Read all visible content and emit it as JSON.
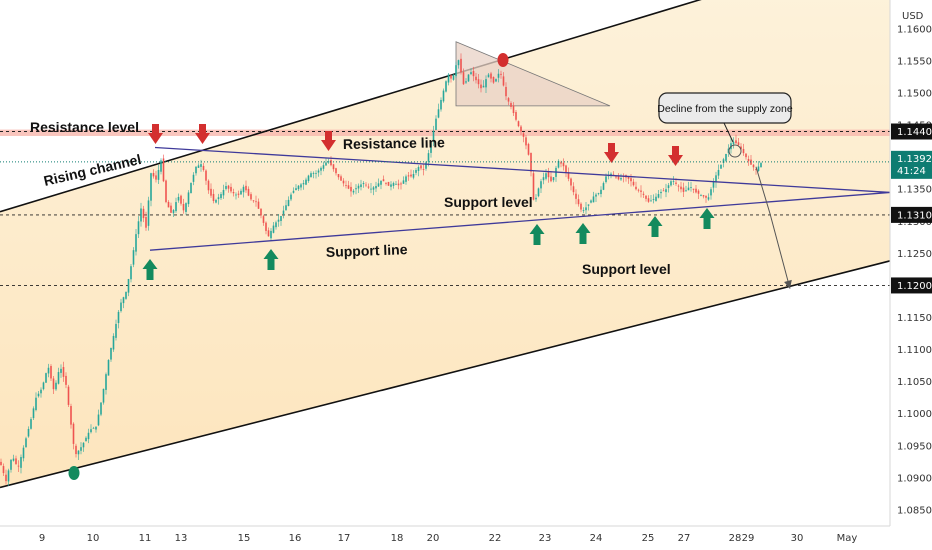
{
  "currency": "USD",
  "colors": {
    "up": "#26a69a",
    "down": "#ef5350",
    "channel_fill": "#fdf0d8",
    "resistance_zone": "#f7b7ac",
    "trendline": "#3f3a9a",
    "arrow_down": "#d32f2f",
    "arrow_up": "#138a5e",
    "current_price_bg": "#0e7c72"
  },
  "chart_data": {
    "type": "candlestick",
    "x_ticks": [
      "9",
      "10",
      "11",
      "13",
      "15",
      "16",
      "17",
      "18",
      "20",
      "22",
      "23",
      "24",
      "25",
      "27",
      "28",
      "29",
      "30",
      "May"
    ],
    "ylim": [
      1.0825,
      1.1645
    ],
    "y_ticks": [
      "1.16000",
      "1.15500",
      "1.15000",
      "1.14500",
      "1.14000",
      "1.13500",
      "1.13000",
      "1.12500",
      "1.12000",
      "1.11500",
      "1.11000",
      "1.10500",
      "1.10000",
      "1.09500",
      "1.09000",
      "1.08500"
    ],
    "price_labels": [
      {
        "label": "1.14400",
        "value": 1.144
      },
      {
        "label": "1.13100",
        "value": 1.131
      },
      {
        "label": "1.12000",
        "value": 1.12
      }
    ],
    "current_price": {
      "price": "1.13927",
      "countdown": "41:24",
      "value": 1.13927
    },
    "key_levels": {
      "resistance": 1.144,
      "support": 1.131,
      "lower_support": 1.12
    },
    "path_points": [
      [
        0,
        1.0925
      ],
      [
        6,
        1.0895
      ],
      [
        12,
        1.0935
      ],
      [
        18,
        1.0915
      ],
      [
        24,
        1.095
      ],
      [
        30,
        1.0985
      ],
      [
        36,
        1.1025
      ],
      [
        42,
        1.104
      ],
      [
        48,
        1.1075
      ],
      [
        54,
        1.1035
      ],
      [
        60,
        1.1075
      ],
      [
        66,
        1.1045
      ],
      [
        70,
        1.0995
      ],
      [
        75,
        1.0935
      ],
      [
        82,
        1.095
      ],
      [
        90,
        1.0975
      ],
      [
        96,
        1.098
      ],
      [
        102,
        1.1025
      ],
      [
        108,
        1.108
      ],
      [
        114,
        1.1125
      ],
      [
        120,
        1.117
      ],
      [
        126,
        1.119
      ],
      [
        131,
        1.123
      ],
      [
        136,
        1.128
      ],
      [
        141,
        1.132
      ],
      [
        146,
        1.129
      ],
      [
        151,
        1.1375
      ],
      [
        156,
        1.1365
      ],
      [
        161,
        1.1395
      ],
      [
        166,
        1.133
      ],
      [
        172,
        1.131
      ],
      [
        178,
        1.134
      ],
      [
        184,
        1.1315
      ],
      [
        190,
        1.1355
      ],
      [
        196,
        1.1385
      ],
      [
        202,
        1.139
      ],
      [
        208,
        1.135
      ],
      [
        214,
        1.133
      ],
      [
        220,
        1.134
      ],
      [
        226,
        1.1355
      ],
      [
        232,
        1.1345
      ],
      [
        238,
        1.134
      ],
      [
        244,
        1.1355
      ],
      [
        250,
        1.1335
      ],
      [
        256,
        1.133
      ],
      [
        262,
        1.1305
      ],
      [
        268,
        1.1275
      ],
      [
        274,
        1.1295
      ],
      [
        280,
        1.1305
      ],
      [
        286,
        1.1325
      ],
      [
        292,
        1.1345
      ],
      [
        298,
        1.1355
      ],
      [
        304,
        1.136
      ],
      [
        310,
        1.1375
      ],
      [
        316,
        1.1375
      ],
      [
        322,
        1.1385
      ],
      [
        328,
        1.1395
      ],
      [
        334,
        1.138
      ],
      [
        340,
        1.1365
      ],
      [
        346,
        1.1355
      ],
      [
        352,
        1.1345
      ],
      [
        358,
        1.1355
      ],
      [
        364,
        1.136
      ],
      [
        370,
        1.135
      ],
      [
        376,
        1.1355
      ],
      [
        382,
        1.1365
      ],
      [
        388,
        1.1355
      ],
      [
        394,
        1.136
      ],
      [
        400,
        1.1355
      ],
      [
        406,
        1.137
      ],
      [
        412,
        1.137
      ],
      [
        418,
        1.1385
      ],
      [
        424,
        1.138
      ],
      [
        430,
        1.1415
      ],
      [
        436,
        1.146
      ],
      [
        442,
        1.1495
      ],
      [
        448,
        1.153
      ],
      [
        452,
        1.152
      ],
      [
        458,
        1.1555
      ],
      [
        464,
        1.151
      ],
      [
        470,
        1.1535
      ],
      [
        476,
        1.152
      ],
      [
        482,
        1.1505
      ],
      [
        488,
        1.153
      ],
      [
        494,
        1.1515
      ],
      [
        500,
        1.1535
      ],
      [
        506,
        1.1495
      ],
      [
        512,
        1.1475
      ],
      [
        518,
        1.145
      ],
      [
        524,
        1.143
      ],
      [
        530,
        1.1395
      ],
      [
        534,
        1.1325
      ],
      [
        540,
        1.136
      ],
      [
        546,
        1.1375
      ],
      [
        552,
        1.136
      ],
      [
        558,
        1.1395
      ],
      [
        564,
        1.1385
      ],
      [
        570,
        1.136
      ],
      [
        576,
        1.1335
      ],
      [
        582,
        1.1315
      ],
      [
        588,
        1.1325
      ],
      [
        594,
        1.134
      ],
      [
        600,
        1.1345
      ],
      [
        606,
        1.137
      ],
      [
        612,
        1.1375
      ],
      [
        618,
        1.1365
      ],
      [
        624,
        1.137
      ],
      [
        630,
        1.1365
      ],
      [
        636,
        1.135
      ],
      [
        642,
        1.1345
      ],
      [
        648,
        1.133
      ],
      [
        654,
        1.1335
      ],
      [
        660,
        1.1345
      ],
      [
        666,
        1.135
      ],
      [
        672,
        1.1365
      ],
      [
        678,
        1.1355
      ],
      [
        684,
        1.1345
      ],
      [
        690,
        1.1355
      ],
      [
        696,
        1.1345
      ],
      [
        702,
        1.134
      ],
      [
        708,
        1.1335
      ],
      [
        714,
        1.1365
      ],
      [
        720,
        1.1385
      ],
      [
        726,
        1.1405
      ],
      [
        732,
        1.1425
      ],
      [
        738,
        1.142
      ],
      [
        744,
        1.1405
      ],
      [
        750,
        1.139
      ],
      [
        756,
        1.138
      ],
      [
        762,
        1.1393
      ]
    ],
    "overlays": {
      "rising_channel_upper": [
        [
          0,
          1.1315
        ],
        [
          932,
          1.1755
        ]
      ],
      "rising_channel_lower": [
        [
          0,
          1.0885
        ],
        [
          932,
          1.1255
        ]
      ],
      "resistance_line": [
        [
          155,
          1.1415
        ],
        [
          890,
          1.1345
        ]
      ],
      "support_line": [
        [
          150,
          1.1255
        ],
        [
          890,
          1.1345
        ]
      ],
      "triangle": [
        [
          456,
          1.158
        ],
        [
          610,
          1.148
        ],
        [
          456,
          1.148
        ]
      ],
      "forecast": [
        [
          756,
          1.1385
        ],
        [
          770,
          1.1312
        ],
        [
          790,
          1.1195
        ]
      ]
    },
    "annotations": [
      {
        "text": "Resistance level"
      },
      {
        "text": "Rising channel"
      },
      {
        "text": "Resistance line"
      },
      {
        "text": "Support level"
      },
      {
        "text": "Support line"
      },
      {
        "text": "Support level"
      },
      {
        "text": "Decline from the supply zone"
      }
    ]
  }
}
